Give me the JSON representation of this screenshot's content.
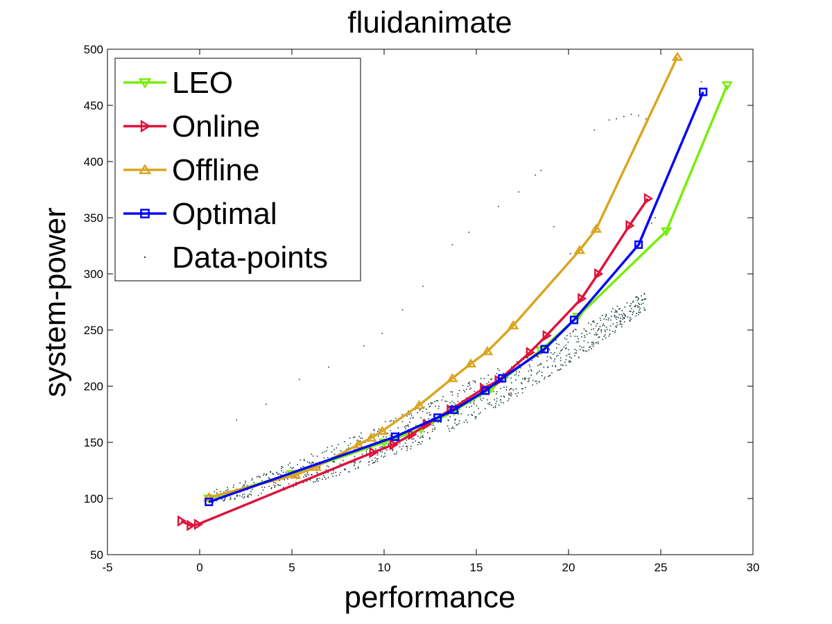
{
  "chart_data": {
    "type": "line",
    "title": "fluidanimate",
    "xlabel": "performance",
    "ylabel": "system-power",
    "xlim": [
      -5,
      30
    ],
    "ylim": [
      50,
      500
    ],
    "xticks": [
      -5,
      0,
      5,
      10,
      15,
      20,
      25,
      30
    ],
    "yticks": [
      50,
      100,
      150,
      200,
      250,
      300,
      350,
      400,
      450,
      500
    ],
    "grid": false,
    "legend_position": "top-left",
    "series": [
      {
        "name": "LEO",
        "color": "#76ee00",
        "marker": "triangle-down",
        "x": [
          0.5,
          5.0,
          10.0,
          12.0,
          13.8,
          15.8,
          18.5,
          20.5,
          25.3,
          28.6
        ],
        "y": [
          100,
          122,
          150,
          162,
          178,
          198,
          232,
          262,
          338,
          468
        ]
      },
      {
        "name": "Online",
        "color": "#dc143c",
        "marker": "triangle-right",
        "x": [
          -1.0,
          -0.5,
          -0.1,
          9.4,
          10.5,
          11.5,
          12.3,
          13.6,
          15.4,
          16.2,
          17.9,
          18.8,
          20.7,
          21.6,
          23.3,
          24.3
        ],
        "y": [
          80,
          76,
          77,
          141,
          148,
          157,
          166,
          179,
          198,
          205,
          230,
          245,
          278,
          300,
          343,
          367
        ]
      },
      {
        "name": "Offline",
        "color": "#daa520",
        "marker": "triangle-up",
        "x": [
          0.5,
          5.2,
          6.3,
          8.6,
          9.3,
          9.9,
          11.9,
          13.7,
          14.7,
          15.6,
          17.0,
          20.6,
          21.5,
          25.9
        ],
        "y": [
          101,
          121,
          128,
          148,
          154,
          160,
          183,
          207,
          220,
          231,
          254,
          321,
          340,
          493
        ]
      },
      {
        "name": "Optimal",
        "color": "#0000ff",
        "marker": "square",
        "x": [
          0.5,
          10.6,
          12.9,
          13.8,
          15.5,
          16.4,
          18.7,
          20.3,
          23.8,
          27.3
        ],
        "y": [
          97,
          155,
          172,
          179,
          196,
          207,
          233,
          259,
          326,
          462
        ]
      },
      {
        "name": "Data-points",
        "color": "#1b3a3a",
        "marker": "dot",
        "style": "scatter",
        "note": "approx. 1000 scattered measurements between the curves",
        "outliers": {
          "x": [
            2.0,
            3.6,
            5.4,
            7.0,
            8.9,
            9.9,
            11.0,
            12.1,
            13.7,
            14.6,
            16.2,
            17.3,
            18.2,
            18.5,
            19.2,
            20.1,
            21.4,
            22.2,
            22.6,
            23.0,
            23.4,
            23.8,
            24.2,
            24.5,
            24.7,
            27.2
          ],
          "y": [
            170,
            184,
            206,
            217,
            236,
            247,
            268,
            289,
            326,
            337,
            360,
            373,
            388,
            392,
            342,
            318,
            428,
            437,
            438,
            440,
            442,
            441,
            438,
            345,
            350,
            471
          ]
        }
      }
    ]
  }
}
